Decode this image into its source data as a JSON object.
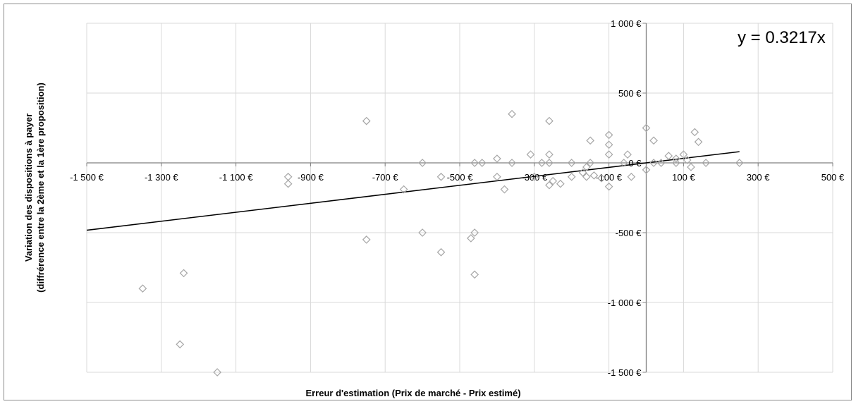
{
  "chart_data": {
    "type": "scatter",
    "title": "",
    "xlabel": "Erreur d'estimation (Prix de marché - Prix estimé)",
    "ylabel_lines": [
      "Variation des dispositions à payer",
      "(diffrérence entre la 2ème et la 1ère proposition)"
    ],
    "xlim": [
      -1500,
      500
    ],
    "ylim": [
      -1500,
      1000
    ],
    "x_ticks": [
      -1500,
      -1300,
      -1100,
      -900,
      -700,
      -500,
      -300,
      -100,
      100,
      300,
      500
    ],
    "x_tick_labels": [
      "-1 500 €",
      "-1 300 €",
      "-1 100 €",
      "-900 €",
      "-700 €",
      "-500 €",
      "-300 €",
      "-100 €",
      "100 €",
      "300 €",
      "500 €"
    ],
    "y_ticks": [
      1000,
      500,
      0,
      -500,
      -1000,
      -1500
    ],
    "y_tick_labels": [
      "1 000 €",
      "500 €",
      "0 €",
      "-500 €",
      "-1 000 €",
      "-1 500 €"
    ],
    "grid": true,
    "trendline": {
      "slope": 0.3217,
      "x_range": [
        -1500,
        250
      ],
      "label": "y = 0.3217x"
    },
    "marker_color": "#a6a6a6",
    "line_color": "#000000",
    "grid_color": "#d9d9d9",
    "points": [
      {
        "x": -1350,
        "y": -900
      },
      {
        "x": -1250,
        "y": -1300
      },
      {
        "x": -1240,
        "y": -790
      },
      {
        "x": -1150,
        "y": -1500
      },
      {
        "x": -960,
        "y": -100
      },
      {
        "x": -960,
        "y": -150
      },
      {
        "x": -750,
        "y": 300
      },
      {
        "x": -750,
        "y": -550
      },
      {
        "x": -650,
        "y": -190
      },
      {
        "x": -600,
        "y": 0
      },
      {
        "x": -600,
        "y": -500
      },
      {
        "x": -550,
        "y": -100
      },
      {
        "x": -550,
        "y": -640
      },
      {
        "x": -470,
        "y": -540
      },
      {
        "x": -460,
        "y": 0
      },
      {
        "x": -460,
        "y": -500
      },
      {
        "x": -460,
        "y": -800
      },
      {
        "x": -440,
        "y": 0
      },
      {
        "x": -400,
        "y": 30
      },
      {
        "x": -400,
        "y": -100
      },
      {
        "x": -380,
        "y": -190
      },
      {
        "x": -360,
        "y": 0
      },
      {
        "x": -360,
        "y": 350
      },
      {
        "x": -310,
        "y": 60
      },
      {
        "x": -300,
        "y": -100
      },
      {
        "x": -280,
        "y": 0
      },
      {
        "x": -260,
        "y": 60
      },
      {
        "x": -260,
        "y": 300
      },
      {
        "x": -260,
        "y": 0
      },
      {
        "x": -260,
        "y": -160
      },
      {
        "x": -250,
        "y": -130
      },
      {
        "x": -230,
        "y": -150
      },
      {
        "x": -200,
        "y": 0
      },
      {
        "x": -200,
        "y": -100
      },
      {
        "x": -170,
        "y": -70
      },
      {
        "x": -160,
        "y": -30
      },
      {
        "x": -160,
        "y": -100
      },
      {
        "x": -150,
        "y": 0
      },
      {
        "x": -150,
        "y": 160
      },
      {
        "x": -140,
        "y": -90
      },
      {
        "x": -120,
        "y": -110
      },
      {
        "x": -100,
        "y": 200
      },
      {
        "x": -100,
        "y": 130
      },
      {
        "x": -100,
        "y": 60
      },
      {
        "x": -100,
        "y": -170
      },
      {
        "x": -60,
        "y": 0
      },
      {
        "x": -50,
        "y": 60
      },
      {
        "x": -40,
        "y": -100
      },
      {
        "x": 0,
        "y": 250
      },
      {
        "x": 0,
        "y": -50
      },
      {
        "x": 20,
        "y": 160
      },
      {
        "x": 20,
        "y": 0
      },
      {
        "x": 40,
        "y": 0
      },
      {
        "x": 60,
        "y": 50
      },
      {
        "x": 80,
        "y": 0
      },
      {
        "x": 80,
        "y": 30
      },
      {
        "x": 100,
        "y": 60
      },
      {
        "x": 110,
        "y": 20
      },
      {
        "x": 120,
        "y": -30
      },
      {
        "x": 130,
        "y": 220
      },
      {
        "x": 140,
        "y": 150
      },
      {
        "x": 160,
        "y": 0
      },
      {
        "x": 250,
        "y": 0
      }
    ]
  }
}
